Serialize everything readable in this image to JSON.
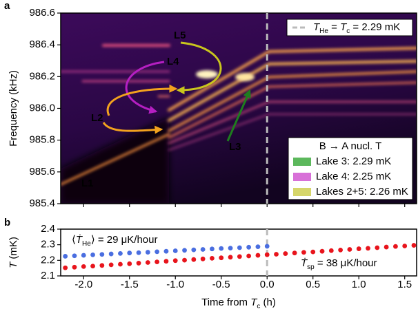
{
  "chart_data": [
    {
      "type": "heatmap",
      "panel_label": "a",
      "ylabel": "Frequency (kHz)",
      "xlim": [
        -2.25,
        1.63
      ],
      "ylim": [
        985.4,
        986.6
      ],
      "yticks": [
        985.4,
        985.6,
        985.8,
        {
          "value": 986,
          "label": "986.0"
        },
        986.2,
        986.4,
        986.6
      ],
      "vline": 0,
      "vline_color": "#bbbbbb",
      "vline_label": [
        "T",
        "He",
        " = ",
        "T",
        "c",
        " = 2.29 mK"
      ],
      "annotations": [
        {
          "text": "L1",
          "color": "#33d6f2"
        },
        {
          "text": "L2",
          "color": "#f2a21e"
        },
        {
          "text": "L3",
          "color": "#1e7d1e"
        },
        {
          "text": "L4",
          "color": "#b51fc2"
        },
        {
          "text": "L5",
          "color": "#c9c61d"
        }
      ],
      "legend_title": "B → A nucl. T",
      "legend": [
        {
          "name": "Lake 3: 2.29 mK",
          "color": "#5cb85c"
        },
        {
          "name": "Lake 4: 2.25 mK",
          "color": "#d870d8"
        },
        {
          "name": "Lakes 2+5: 2.26 mK",
          "color": "#d6d66a"
        }
      ]
    },
    {
      "type": "scatter",
      "panel_label": "b",
      "ylabel": [
        "T",
        " (mK)"
      ],
      "xlabel": [
        "Time from ",
        "T",
        "c",
        " (h)"
      ],
      "xlim": [
        -2.25,
        1.63
      ],
      "ylim": [
        2.1,
        2.4
      ],
      "xticks": [
        {
          "value": -2,
          "label": "-2.0"
        },
        {
          "value": -1.5,
          "label": "-1.5"
        },
        {
          "value": -1,
          "label": "-1.0"
        },
        {
          "value": -0.5,
          "label": "-0.5"
        },
        {
          "value": 0,
          "label": "0.0"
        },
        {
          "value": 0.5,
          "label": "0.5"
        },
        {
          "value": 1,
          "label": "1.0"
        },
        {
          "value": 1.5,
          "label": "1.5"
        }
      ],
      "yticks": [
        2.1,
        2.2,
        2.3,
        2.4
      ],
      "vline": 0,
      "series": [
        {
          "color": "#4a6ee0",
          "annotation": [
            "⟨",
            "Ṫ",
            "He",
            "⟩ = 29 μK/hour"
          ],
          "x": [
            -2.2,
            -2.1,
            -2.0,
            -1.9,
            -1.8,
            -1.7,
            -1.6,
            -1.5,
            -1.4,
            -1.3,
            -1.2,
            -1.1,
            -1.0,
            -0.9,
            -0.8,
            -0.7,
            -0.6,
            -0.5,
            -0.4,
            -0.3,
            -0.2,
            -0.1,
            0.0
          ],
          "values": [
            2.226,
            2.229,
            2.232,
            2.235,
            2.238,
            2.241,
            2.244,
            2.247,
            2.249,
            2.252,
            2.255,
            2.258,
            2.261,
            2.264,
            2.267,
            2.27,
            2.273,
            2.276,
            2.278,
            2.281,
            2.284,
            2.287,
            2.29
          ]
        },
        {
          "color": "#e8141c",
          "annotation": [
            "Ṫ",
            "sp",
            " = 38 μK/hour"
          ],
          "x": [
            -2.2,
            -2.1,
            -2.0,
            -1.9,
            -1.8,
            -1.7,
            -1.6,
            -1.5,
            -1.4,
            -1.3,
            -1.2,
            -1.1,
            -1.0,
            -0.9,
            -0.8,
            -0.7,
            -0.6,
            -0.5,
            -0.4,
            -0.3,
            -0.2,
            -0.1,
            0.0,
            0.1,
            0.2,
            0.3,
            0.4,
            0.5,
            0.6,
            0.7,
            0.8,
            0.9,
            1.0,
            1.1,
            1.2,
            1.3,
            1.4,
            1.5,
            1.6
          ],
          "values": [
            2.152,
            2.156,
            2.16,
            2.163,
            2.167,
            2.171,
            2.175,
            2.178,
            2.182,
            2.186,
            2.19,
            2.194,
            2.198,
            2.201,
            2.205,
            2.209,
            2.213,
            2.216,
            2.22,
            2.224,
            2.228,
            2.232,
            2.236,
            2.239,
            2.243,
            2.247,
            2.251,
            2.254,
            2.258,
            2.262,
            2.266,
            2.27,
            2.274,
            2.277,
            2.281,
            2.285,
            2.289,
            2.292,
            2.296
          ]
        }
      ]
    }
  ]
}
